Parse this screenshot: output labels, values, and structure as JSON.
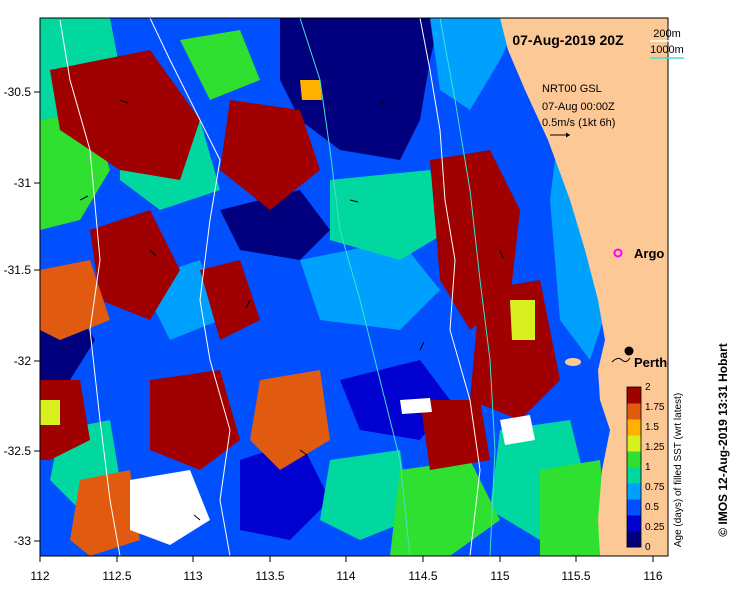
{
  "title": "07-Aug-2019 20Z",
  "contours_legend": {
    "label_200": "200m",
    "label_1000": "1000m",
    "color_200": "#ffffff",
    "color_1000": "#40e0d0"
  },
  "current_info": {
    "line1": "NRT00 GSL",
    "line2": "07-Aug 00:00Z",
    "line3": "0.5m/s (1kt 6h)"
  },
  "places": {
    "argo": "Argo",
    "perth": "Perth"
  },
  "colorbar": {
    "title": "Age (days) of filled SST (wrt latest)",
    "ticks": [
      "0",
      "0.25",
      "0.5",
      "0.75",
      "1",
      "1.25",
      "1.5",
      "1.75",
      "2"
    ],
    "colors": [
      "#00007f",
      "#0000d0",
      "#0050ff",
      "#00a0ff",
      "#00d8a0",
      "#30e030",
      "#d8f020",
      "#ffb000",
      "#e05a10",
      "#a00000"
    ]
  },
  "credit": "© IMOS 12-Aug-2019 13:31 Hobart",
  "axes": {
    "x_ticks": [
      "112",
      "112.5",
      "113",
      "113.5",
      "114",
      "114.5",
      "115",
      "115.5",
      "116"
    ],
    "y_ticks": [
      "-30.5",
      "-31",
      "-31.5",
      "-32",
      "-32.5",
      "-33"
    ]
  },
  "colors": {
    "land": "#fcc896",
    "ocean_dominant": "#0050ff"
  },
  "icons": {
    "argo": "argo-float-icon",
    "perth": "city-dot-icon",
    "vector": "arrow-icon"
  }
}
